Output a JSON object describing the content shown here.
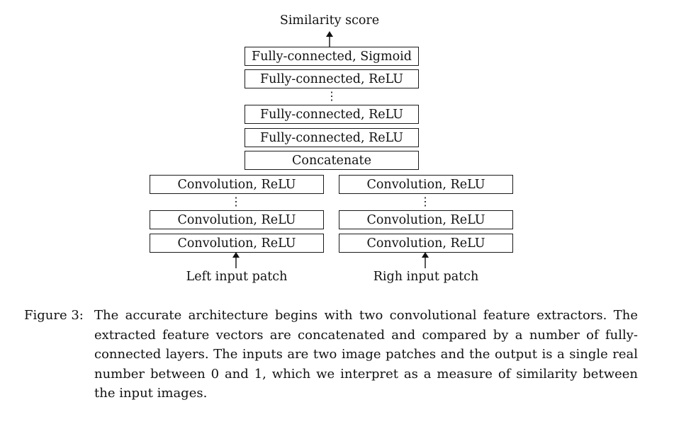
{
  "diagram": {
    "output_label": "Similarity score",
    "head_layers": [
      "Fully-connected, Sigmoid",
      "Fully-connected, ReLU",
      "Fully-connected, ReLU",
      "Fully-connected, ReLU"
    ],
    "concat_label": "Concatenate",
    "left_branch": {
      "layers": [
        "Convolution, ReLU",
        "Convolution, ReLU",
        "Convolution, ReLU"
      ],
      "input_label": "Left input patch"
    },
    "right_branch": {
      "layers": [
        "Convolution, ReLU",
        "Convolution, ReLU",
        "Convolution, ReLU"
      ],
      "input_label": "Righ input patch"
    },
    "ellipsis": "⋮"
  },
  "caption": {
    "tag": "Figure 3:",
    "text": "The accurate architecture begins with two convolutional feature extractors. The extracted feature vectors are concatenated and compared by a number of fully-connected layers. The inputs are two image patches and the output is a single real number between 0 and 1, which we interpret as a measure of similarity between the input images."
  }
}
